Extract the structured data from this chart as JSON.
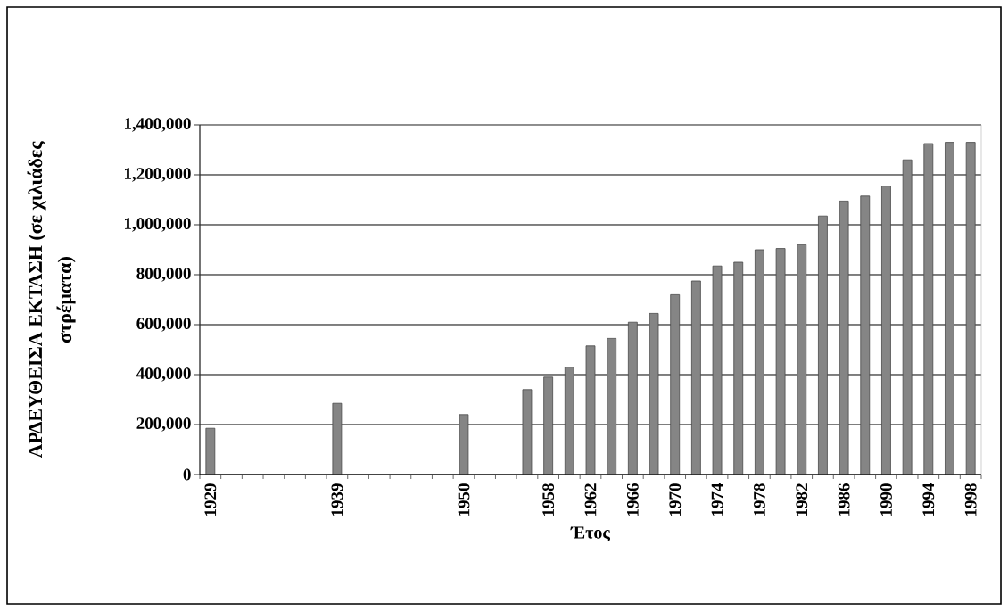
{
  "chart_data": {
    "type": "bar",
    "xlabel": "Έτος",
    "ylabel": "ΑΡΔΕΥΘΕΙΣΑ ΕΚΤΑΣΗ (σε χιλιάδες στρέματα)",
    "categories": [
      "1929",
      null,
      null,
      null,
      null,
      null,
      "1939",
      null,
      null,
      null,
      null,
      null,
      "1950",
      null,
      null,
      null,
      "1958",
      null,
      "1962",
      null,
      "1966",
      null,
      "1970",
      null,
      "1974",
      null,
      "1978",
      null,
      "1982",
      null,
      "1986",
      null,
      "1990",
      null,
      "1994",
      null,
      "1998"
    ],
    "values": [
      185000,
      null,
      null,
      null,
      null,
      null,
      285000,
      null,
      null,
      null,
      null,
      null,
      240000,
      null,
      null,
      340000,
      390000,
      430000,
      515000,
      545000,
      610000,
      645000,
      720000,
      775000,
      835000,
      850000,
      900000,
      905000,
      920000,
      1035000,
      1095000,
      1115000,
      1155000,
      1260000,
      1325000,
      1330000,
      1330000
    ],
    "color": "#858585",
    "ylim": [
      0,
      1400000
    ],
    "yticks": [
      0,
      {
        "value": 200000,
        "label": "200,000"
      },
      {
        "value": 400000,
        "label": "400,000"
      },
      {
        "value": 600000,
        "label": "600,000"
      },
      {
        "value": 800000,
        "label": "800,000"
      },
      {
        "value": 1000000,
        "label": "1,000,000"
      },
      {
        "value": 1200000,
        "label": "1,200,000"
      },
      {
        "value": 1400000,
        "label": "1,400,000"
      }
    ],
    "grid": "y"
  }
}
